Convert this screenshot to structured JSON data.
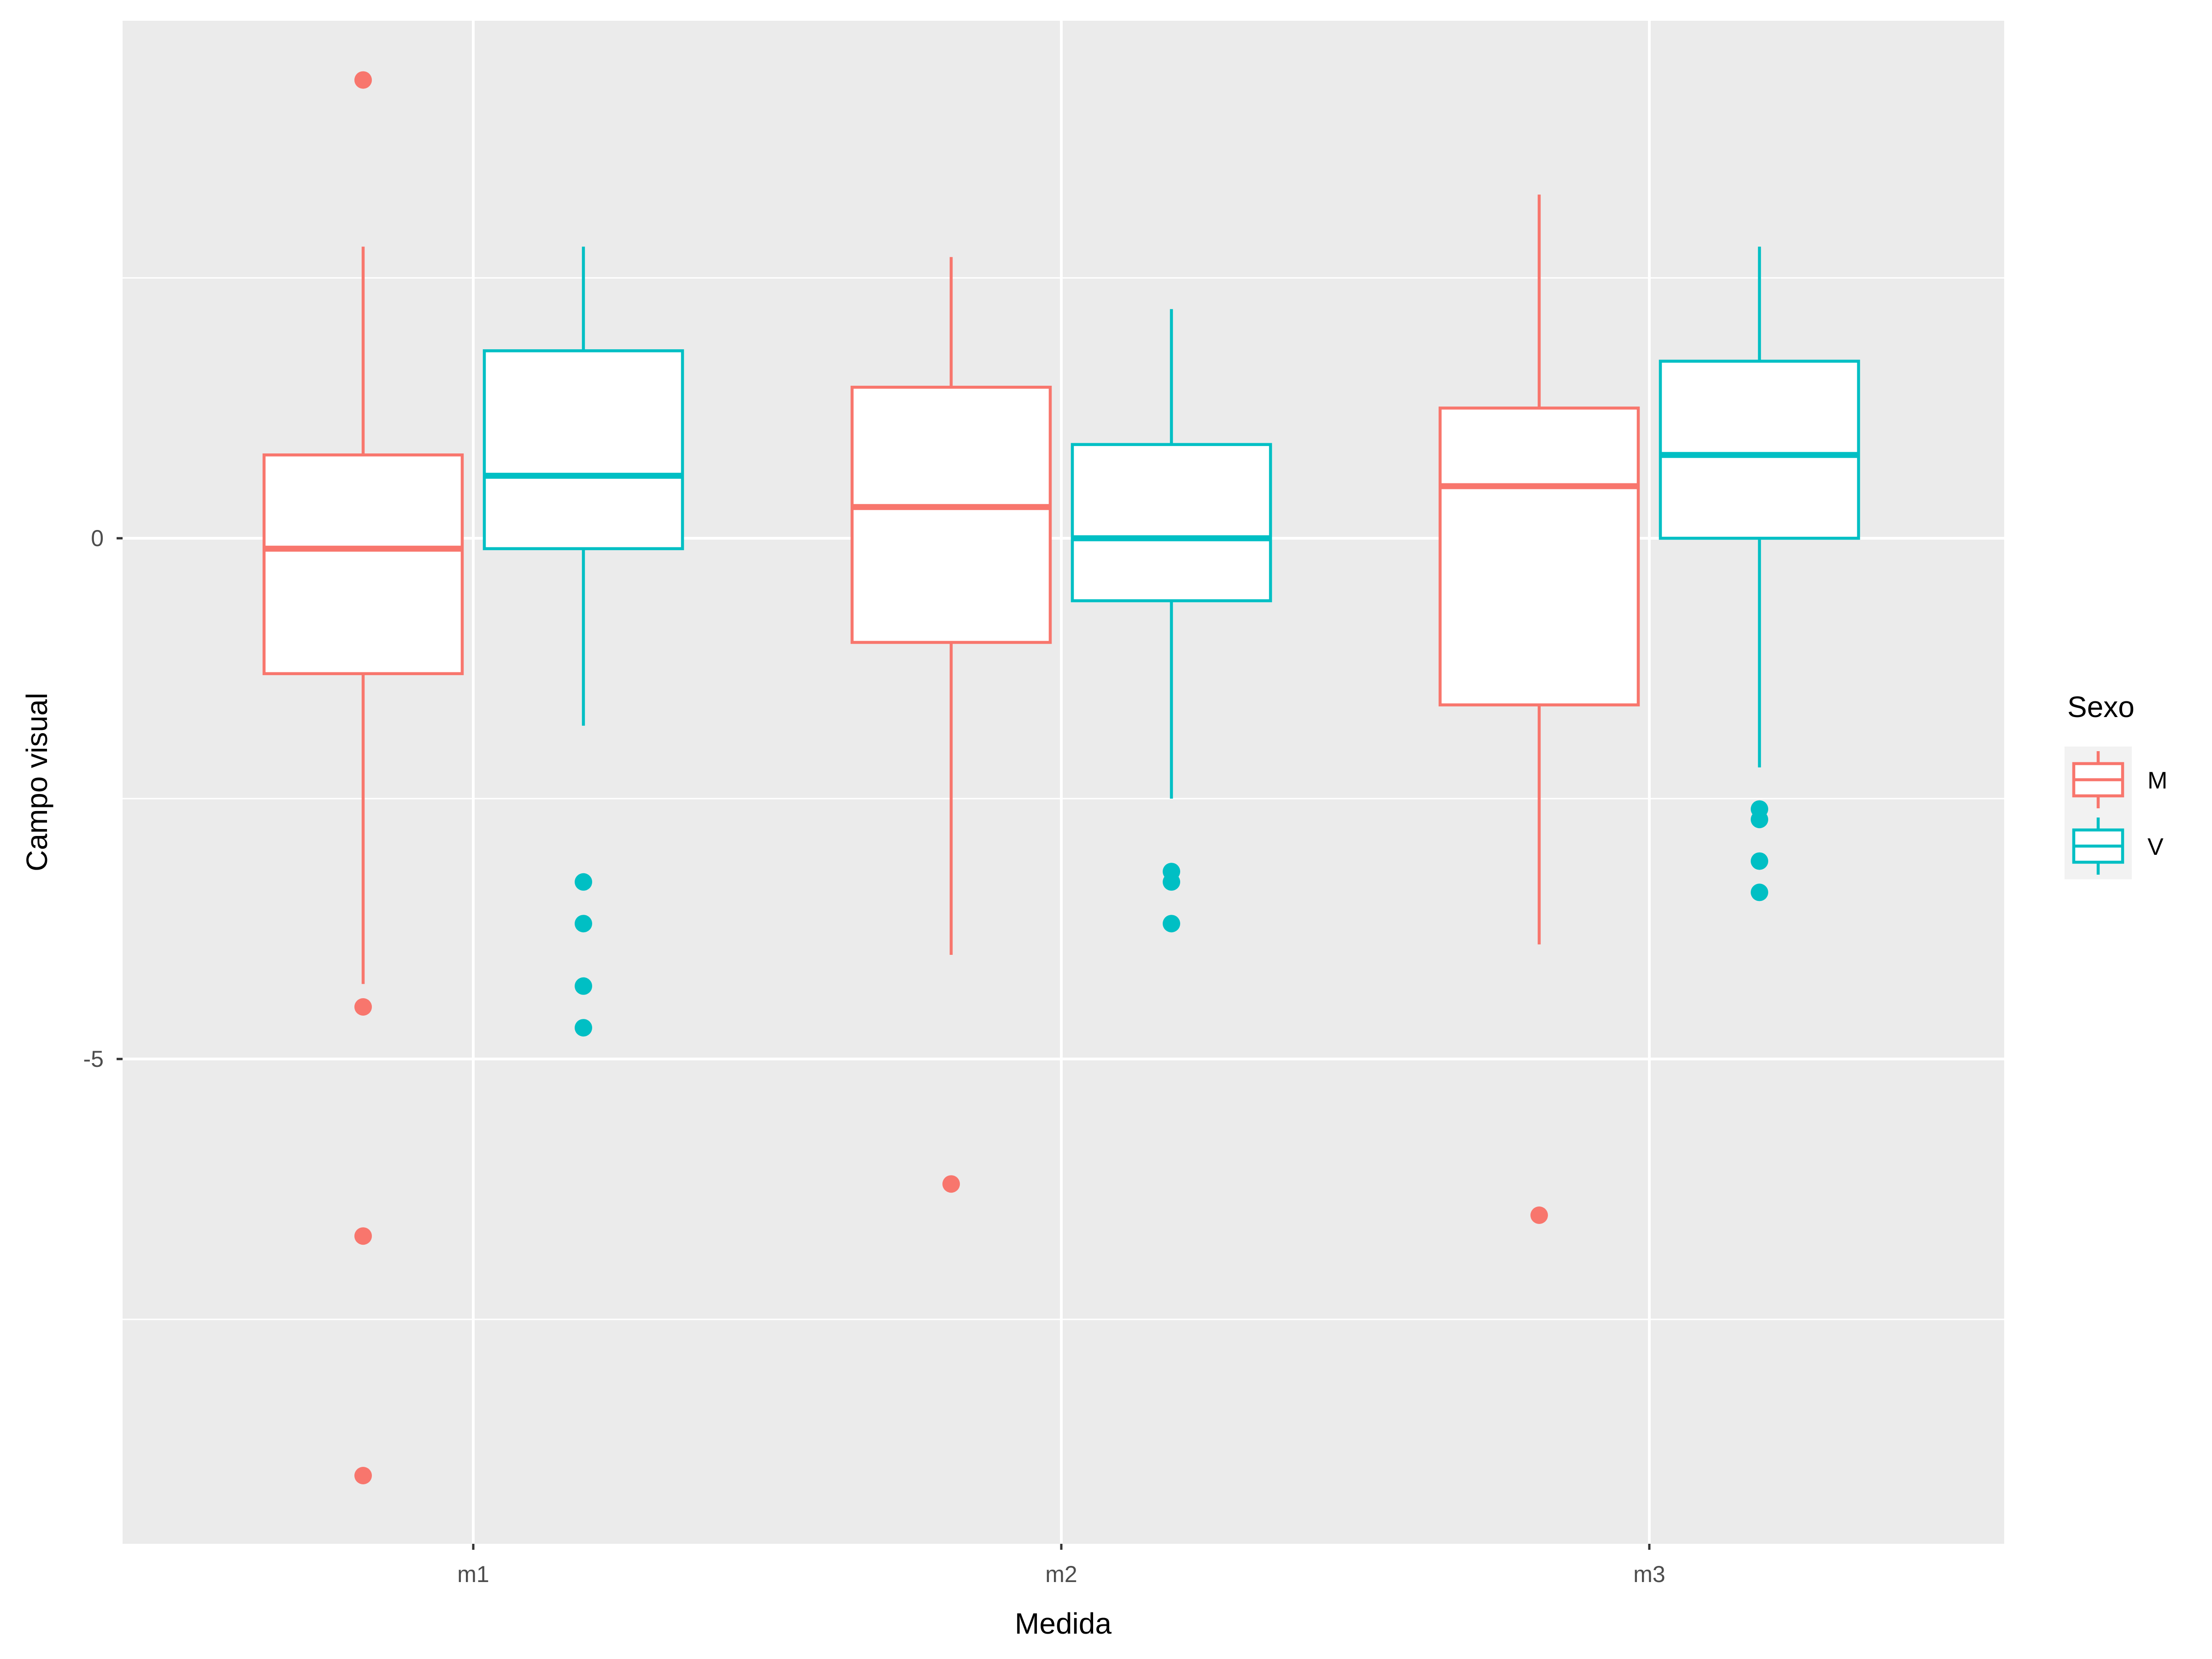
{
  "chart_data": {
    "type": "boxplot",
    "xlabel": "Medida",
    "ylabel": "Campo visual",
    "categories": [
      "m1",
      "m2",
      "m3"
    ],
    "ylim": [
      -9.6,
      5
    ],
    "y_ticks": [
      0,
      -5
    ],
    "y_tick_labels": [
      "0",
      "-5"
    ],
    "grid": true,
    "legend": {
      "title": "Sexo",
      "position": "right",
      "entries": [
        "M",
        "V"
      ]
    },
    "series": [
      {
        "name": "M",
        "color": "#F8766D",
        "boxes": [
          {
            "category": "m1",
            "whisker_low": -4.28,
            "q1": -1.3,
            "median": -0.1,
            "q3": 0.8,
            "whisker_high": 2.8,
            "outliers": [
              4.4,
              -4.5,
              -6.7,
              -9.0
            ]
          },
          {
            "category": "m2",
            "whisker_low": -4.0,
            "q1": -1.0,
            "median": 0.3,
            "q3": 1.45,
            "whisker_high": 2.7,
            "outliers": [
              -6.2
            ]
          },
          {
            "category": "m3",
            "whisker_low": -3.9,
            "q1": -1.6,
            "median": 0.5,
            "q3": 1.25,
            "whisker_high": 3.3,
            "outliers": [
              -6.5
            ]
          }
        ]
      },
      {
        "name": "V",
        "color": "#00BFC4",
        "boxes": [
          {
            "category": "m1",
            "whisker_low": -1.8,
            "q1": -0.1,
            "median": 0.6,
            "q3": 1.8,
            "whisker_high": 2.8,
            "outliers": [
              -3.3,
              -3.7,
              -4.3,
              -4.7
            ]
          },
          {
            "category": "m2",
            "whisker_low": -2.5,
            "q1": -0.6,
            "median": 0.0,
            "q3": 0.9,
            "whisker_high": 2.2,
            "outliers": [
              -3.2,
              -3.3,
              -3.7
            ]
          },
          {
            "category": "m3",
            "whisker_low": -2.2,
            "q1": 0.0,
            "median": 0.8,
            "q3": 1.7,
            "whisker_high": 2.8,
            "outliers": [
              -2.6,
              -2.7,
              -3.1,
              -3.4
            ]
          }
        ]
      }
    ]
  }
}
